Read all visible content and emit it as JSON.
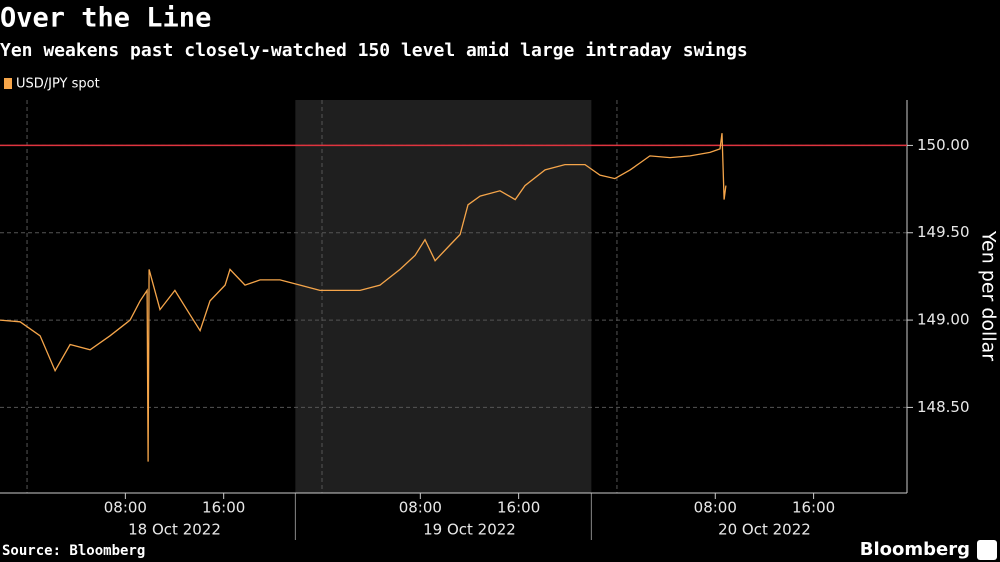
{
  "chart_data": {
    "type": "line",
    "title": "Over the Line",
    "subtitle": "Yen weakens past closely-watched 150 level amid large intraday swings",
    "y_label": "Yen per dollar",
    "source": "Source: Bloomberg",
    "brand": "Bloomberg",
    "x": [
      "2022-10-17T21:48",
      "2022-10-17T23:26",
      "2022-10-18T01:04",
      "2022-10-18T02:17",
      "2022-10-18T03:30",
      "2022-10-18T05:08",
      "2022-10-18T06:45",
      "2022-10-18T08:23",
      "2022-10-18T09:12",
      "2022-10-18T09:46",
      "2022-10-18T09:51",
      "2022-10-18T09:56",
      "2022-10-18T10:49",
      "2022-10-18T12:02",
      "2022-10-18T13:16",
      "2022-10-18T14:05",
      "2022-10-18T14:53",
      "2022-10-18T16:07",
      "2022-10-18T16:31",
      "2022-10-18T17:44",
      "2022-10-18T18:58",
      "2022-10-18T20:35",
      "2022-10-18T22:13",
      "2022-10-18T23:50",
      "2022-10-19T01:28",
      "2022-10-19T03:06",
      "2022-10-19T04:43",
      "2022-10-19T06:21",
      "2022-10-19T07:34",
      "2022-10-19T08:23",
      "2022-10-19T09:12",
      "2022-10-19T10:25",
      "2022-10-19T11:14",
      "2022-10-19T11:53",
      "2022-10-19T12:52",
      "2022-10-19T14:29",
      "2022-10-19T15:43",
      "2022-10-19T16:31",
      "2022-10-19T18:09",
      "2022-10-19T19:46",
      "2022-10-19T21:24",
      "2022-10-19T22:37",
      "2022-10-19T23:50",
      "2022-10-20T01:04",
      "2022-10-20T01:53",
      "2022-10-20T02:41",
      "2022-10-20T04:19",
      "2022-10-20T05:57",
      "2022-10-20T07:34",
      "2022-10-20T08:23",
      "2022-10-20T08:33",
      "2022-10-20T08:43",
      "2022-10-20T08:52"
    ],
    "series": [
      {
        "name": "USD/JPY spot",
        "color": "#f5a54a",
        "values": [
          149.0,
          148.99,
          148.91,
          148.71,
          148.86,
          148.83,
          148.91,
          149.0,
          149.11,
          149.17,
          148.19,
          149.29,
          149.06,
          149.17,
          149.03,
          148.94,
          149.11,
          149.2,
          149.29,
          149.2,
          149.23,
          149.23,
          149.2,
          149.17,
          149.17,
          149.17,
          149.2,
          149.29,
          149.37,
          149.46,
          149.34,
          149.43,
          149.49,
          149.66,
          149.71,
          149.74,
          149.69,
          149.77,
          149.86,
          149.89,
          149.89,
          149.83,
          149.81,
          149.86,
          149.9,
          149.94,
          149.93,
          149.94,
          149.96,
          149.98,
          150.07,
          149.69,
          149.77
        ]
      }
    ],
    "xlim": [
      "2022-10-17T21:48",
      "2022-10-20T23:36"
    ],
    "xticks": [
      {
        "value": "2022-10-18T08:00",
        "label": "08:00"
      },
      {
        "value": "2022-10-18T16:00",
        "label": "16:00"
      },
      {
        "value": "2022-10-19T08:00",
        "label": "08:00"
      },
      {
        "value": "2022-10-19T16:00",
        "label": "16:00"
      },
      {
        "value": "2022-10-20T08:00",
        "label": "08:00"
      },
      {
        "value": "2022-10-20T16:00",
        "label": "16:00"
      }
    ],
    "date_labels": [
      {
        "value": "2022-10-18",
        "label": "18 Oct 2022"
      },
      {
        "value": "2022-10-19",
        "label": "19 Oct 2022"
      },
      {
        "value": "2022-10-20",
        "label": "20 Oct 2022"
      }
    ],
    "shade": [
      "2022-10-18T21:50",
      "2022-10-19T21:55"
    ],
    "ylim": [
      148.01,
      150.26
    ],
    "yticks": [
      {
        "value": 148.5,
        "label": "148.50"
      },
      {
        "value": 149,
        "label": "149.00"
      },
      {
        "value": 149.5,
        "label": "149.50"
      },
      {
        "value": 150,
        "label": "150.00"
      }
    ],
    "reference_line": {
      "value": 150,
      "color": "#e0343f"
    },
    "grid": true
  }
}
